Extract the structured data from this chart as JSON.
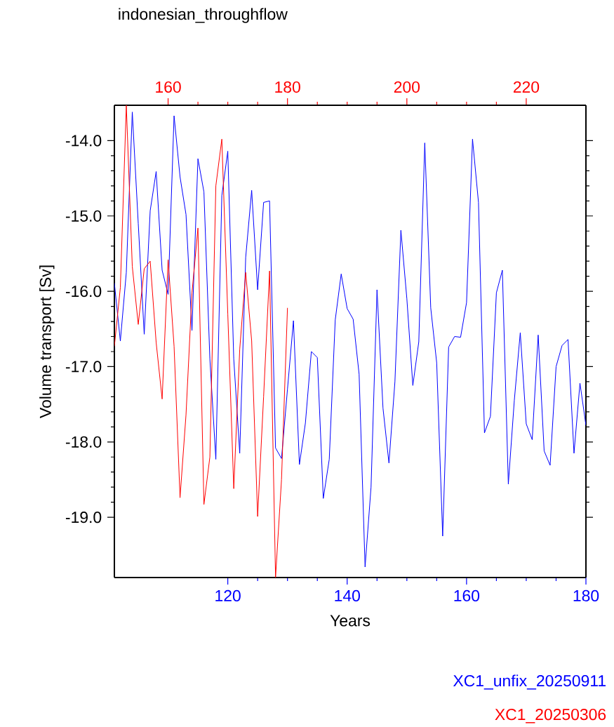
{
  "chart_data": {
    "type": "line",
    "title": "indonesian_throughflow",
    "xlabel": "Years",
    "ylabel": "Volume transport [Sv]",
    "xlim": [
      101,
      180
    ],
    "xticks": [
      120,
      140,
      160,
      180
    ],
    "x2lim": [
      151,
      230
    ],
    "x2ticks": [
      160,
      180,
      200,
      220
    ],
    "ylim": [
      -19.8,
      -13.53
    ],
    "yticks": [
      {
        "value": -19,
        "label": "-19.0"
      },
      {
        "value": -18,
        "label": "-18.0"
      },
      {
        "value": -17,
        "label": "-17.0"
      },
      {
        "value": -16,
        "label": "-16.0"
      },
      {
        "value": -15,
        "label": "-15.0"
      },
      {
        "value": -14,
        "label": "-14.0"
      }
    ],
    "grid": false,
    "series": [
      {
        "name": "XC1_unfix_20250911",
        "color": "#0000ff",
        "x": [
          101,
          102,
          103,
          104,
          105,
          106,
          107,
          108,
          109,
          110,
          111,
          112,
          113,
          114,
          115,
          116,
          117,
          118,
          119,
          120,
          121,
          122,
          123,
          124,
          125,
          126,
          127,
          128,
          129,
          130,
          131,
          132,
          133,
          134,
          135,
          136,
          137,
          138,
          139,
          140,
          141,
          142,
          143,
          144,
          145,
          146,
          147,
          148,
          149,
          150,
          151,
          152,
          153,
          154,
          155,
          156,
          157,
          158,
          159,
          160,
          161,
          162,
          163,
          164,
          165,
          166,
          167,
          168,
          169,
          170,
          171,
          172,
          173,
          174,
          175,
          176,
          177,
          178,
          179,
          180
        ],
        "values": [
          -15.89,
          -16.66,
          -15.75,
          -13.62,
          -15.1,
          -16.57,
          -14.93,
          -14.41,
          -15.72,
          -16.04,
          -13.67,
          -14.48,
          -14.98,
          -16.52,
          -14.24,
          -14.68,
          -16.9,
          -18.23,
          -14.73,
          -14.14,
          -16.9,
          -18.15,
          -15.55,
          -14.66,
          -15.98,
          -14.82,
          -14.8,
          -18.08,
          -18.22,
          -17.3,
          -16.39,
          -18.3,
          -17.75,
          -16.8,
          -16.88,
          -18.75,
          -18.23,
          -16.38,
          -15.77,
          -16.23,
          -16.37,
          -17.1,
          -19.66,
          -18.6,
          -15.98,
          -17.55,
          -18.28,
          -17.2,
          -15.19,
          -16.1,
          -17.25,
          -16.67,
          -14.03,
          -16.22,
          -16.95,
          -19.25,
          -16.74,
          -16.6,
          -16.61,
          -16.15,
          -13.98,
          -14.82,
          -17.88,
          -17.66,
          -16.02,
          -15.72,
          -18.56,
          -17.45,
          -16.55,
          -17.76,
          -17.97,
          -16.58,
          -18.12,
          -18.31,
          -17.0,
          -16.72,
          -16.64,
          -18.15,
          -17.22,
          -17.78
        ]
      },
      {
        "name": "XC1_20250306",
        "color": "#ff0000",
        "axis": "x2",
        "x": [
          151,
          152,
          153,
          154,
          155,
          156,
          157,
          158,
          159,
          160,
          161,
          162,
          163,
          164,
          165,
          166,
          167,
          168,
          169,
          170,
          171,
          172,
          173,
          174,
          175,
          176,
          177,
          178,
          179,
          180
        ],
        "values": [
          -16.73,
          -15.95,
          -13.53,
          -15.67,
          -16.44,
          -15.7,
          -15.6,
          -16.68,
          -17.43,
          -15.58,
          -16.73,
          -18.74,
          -17.64,
          -16.02,
          -15.16,
          -18.83,
          -18.2,
          -14.6,
          -13.98,
          -16.3,
          -18.62,
          -16.77,
          -15.75,
          -16.66,
          -18.99,
          -17.4,
          -15.73,
          -19.8,
          -18.5,
          -16.22
        ]
      }
    ]
  }
}
